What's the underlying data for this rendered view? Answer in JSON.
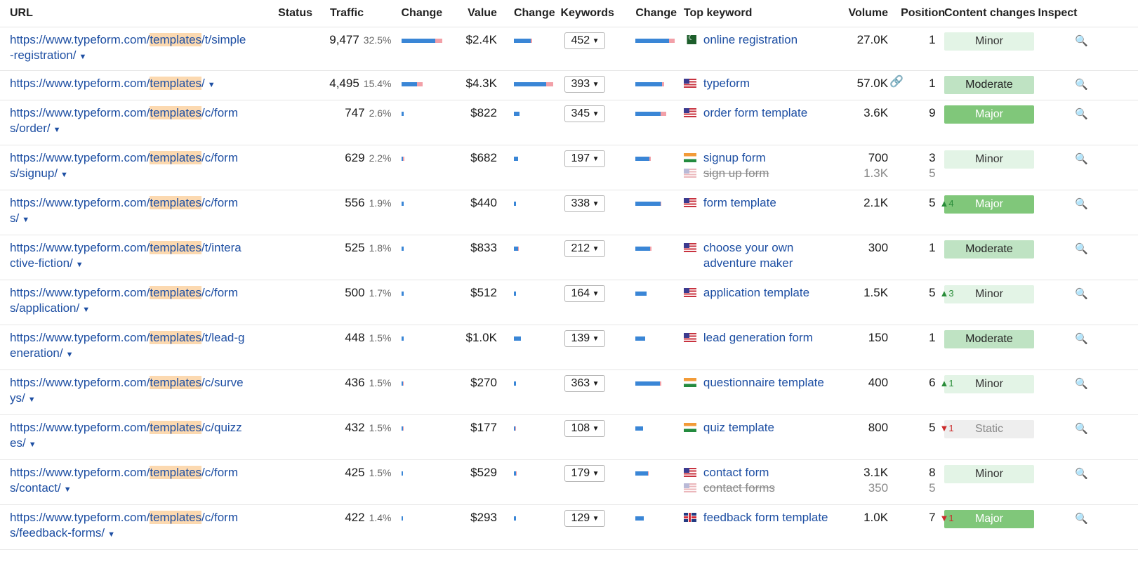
{
  "headers": {
    "url": "URL",
    "status": "Status",
    "traffic": "Traffic",
    "change": "Change",
    "value": "Value",
    "change2": "Change",
    "keywords": "Keywords",
    "change3": "Change",
    "top_keyword": "Top keyword",
    "volume": "Volume",
    "position": "Position",
    "content_changes": "Content changes",
    "inspect": "Inspect"
  },
  "url_prefix": "https://www.typeform.com/",
  "url_highlight": "templates",
  "rows": [
    {
      "url_a": "/t/simple",
      "url_b": "-registration/",
      "traffic": "9,477",
      "pct": "32.5%",
      "tb": 48,
      "tp": 10,
      "value": "$2.4K",
      "vb": 24,
      "vp": 2,
      "keywords": "452",
      "kb": 48,
      "kp": 8,
      "flag": "pk",
      "kw": "online registration",
      "volume": "27.0K",
      "link": false,
      "position": "1",
      "delta": "",
      "delta_dir": "",
      "kw2": "",
      "vol2": "",
      "pos2": "",
      "content": "Minor"
    },
    {
      "url_a": "/",
      "url_b": "",
      "traffic": "4,495",
      "pct": "15.4%",
      "tb": 22,
      "tp": 8,
      "value": "$4.3K",
      "vb": 46,
      "vp": 10,
      "keywords": "393",
      "kb": 38,
      "kp": 3,
      "flag": "us",
      "kw": "typeform",
      "volume": "57.0K",
      "link": true,
      "position": "1",
      "delta": "",
      "delta_dir": "",
      "kw2": "",
      "vol2": "",
      "pos2": "",
      "content": "Moderate"
    },
    {
      "url_a": "/c/form",
      "url_b": "s/order/",
      "traffic": "747",
      "pct": "2.6%",
      "tb": 3,
      "tp": 0,
      "value": "$822",
      "vb": 8,
      "vp": 0,
      "keywords": "345",
      "kb": 36,
      "kp": 8,
      "flag": "us",
      "kw": "order form template",
      "volume": "3.6K",
      "link": false,
      "position": "9",
      "delta": "",
      "delta_dir": "",
      "kw2": "",
      "vol2": "",
      "pos2": "",
      "content": "Major"
    },
    {
      "url_a": "/c/form",
      "url_b": "s/signup/",
      "traffic": "629",
      "pct": "2.2%",
      "tb": 2,
      "tp": 2,
      "value": "$682",
      "vb": 6,
      "vp": 0,
      "keywords": "197",
      "kb": 20,
      "kp": 2,
      "flag": "in",
      "kw": "signup form",
      "volume": "700",
      "link": false,
      "position": "3",
      "delta": "",
      "delta_dir": "",
      "kw2": "sign up form",
      "vol2": "1.3K",
      "pos2": "5",
      "content": "Minor"
    },
    {
      "url_a": "/c/form",
      "url_b": "s/",
      "traffic": "556",
      "pct": "1.9%",
      "tb": 3,
      "tp": 0,
      "value": "$440",
      "vb": 3,
      "vp": 0,
      "keywords": "338",
      "kb": 36,
      "kp": 1,
      "flag": "us",
      "kw": "form template",
      "volume": "2.1K",
      "link": false,
      "position": "5",
      "delta": "4",
      "delta_dir": "up",
      "kw2": "",
      "vol2": "",
      "pos2": "",
      "content": "Major"
    },
    {
      "url_a": "/t/intera",
      "url_b": "ctive-fiction/",
      "traffic": "525",
      "pct": "1.8%",
      "tb": 3,
      "tp": 0,
      "value": "$833",
      "vb": 6,
      "vp": 1,
      "keywords": "212",
      "kb": 21,
      "kp": 2,
      "flag": "us",
      "kw": "choose your own adventure maker",
      "volume": "300",
      "link": false,
      "position": "1",
      "delta": "",
      "delta_dir": "",
      "kw2": "",
      "vol2": "",
      "pos2": "",
      "content": "Moderate"
    },
    {
      "url_a": "/c/form",
      "url_b": "s/application/",
      "traffic": "500",
      "pct": "1.7%",
      "tb": 3,
      "tp": 0,
      "value": "$512",
      "vb": 3,
      "vp": 0,
      "keywords": "164",
      "kb": 16,
      "kp": 0,
      "flag": "us",
      "kw": "application template",
      "volume": "1.5K",
      "link": false,
      "position": "5",
      "delta": "3",
      "delta_dir": "up",
      "kw2": "",
      "vol2": "",
      "pos2": "",
      "content": "Minor"
    },
    {
      "url_a": "/t/lead-g",
      "url_b": "eneration/",
      "traffic": "448",
      "pct": "1.5%",
      "tb": 3,
      "tp": 0,
      "value": "$1.0K",
      "vb": 10,
      "vp": 0,
      "keywords": "139",
      "kb": 14,
      "kp": 0,
      "flag": "us",
      "kw": "lead generation form",
      "volume": "150",
      "link": false,
      "position": "1",
      "delta": "",
      "delta_dir": "",
      "kw2": "",
      "vol2": "",
      "pos2": "",
      "content": "Moderate"
    },
    {
      "url_a": "/c/surve",
      "url_b": "ys/",
      "traffic": "436",
      "pct": "1.5%",
      "tb": 2,
      "tp": 1,
      "value": "$270",
      "vb": 3,
      "vp": 0,
      "keywords": "363",
      "kb": 35,
      "kp": 2,
      "flag": "in",
      "kw": "questionnaire template",
      "volume": "400",
      "link": false,
      "position": "6",
      "delta": "1",
      "delta_dir": "up",
      "kw2": "",
      "vol2": "",
      "pos2": "",
      "content": "Minor"
    },
    {
      "url_a": "/c/quizz",
      "url_b": "es/",
      "traffic": "432",
      "pct": "1.5%",
      "tb": 2,
      "tp": 1,
      "value": "$177",
      "vb": 2,
      "vp": 1,
      "keywords": "108",
      "kb": 11,
      "kp": 0,
      "flag": "in",
      "kw": "quiz template",
      "volume": "800",
      "link": false,
      "position": "5",
      "delta": "1",
      "delta_dir": "down",
      "kw2": "",
      "vol2": "",
      "pos2": "",
      "content": "Static"
    },
    {
      "url_a": "/c/form",
      "url_b": "s/contact/",
      "traffic": "425",
      "pct": "1.5%",
      "tb": 2,
      "tp": 0,
      "value": "$529",
      "vb": 3,
      "vp": 1,
      "keywords": "179",
      "kb": 18,
      "kp": 1,
      "flag": "us",
      "kw": "contact form",
      "volume": "3.1K",
      "link": false,
      "position": "8",
      "delta": "",
      "delta_dir": "",
      "kw2": "contact forms",
      "vol2": "350",
      "pos2": "5",
      "content": "Minor"
    },
    {
      "url_a": "/c/form",
      "url_b": "s/feedback-forms/",
      "traffic": "422",
      "pct": "1.4%",
      "tb": 2,
      "tp": 0,
      "value": "$293",
      "vb": 3,
      "vp": 0,
      "keywords": "129",
      "kb": 12,
      "kp": 0,
      "flag": "gb",
      "kw": "feedback form template",
      "volume": "1.0K",
      "link": false,
      "position": "7",
      "delta": "1",
      "delta_dir": "down",
      "kw2": "",
      "vol2": "",
      "pos2": "",
      "content": "Major"
    }
  ]
}
